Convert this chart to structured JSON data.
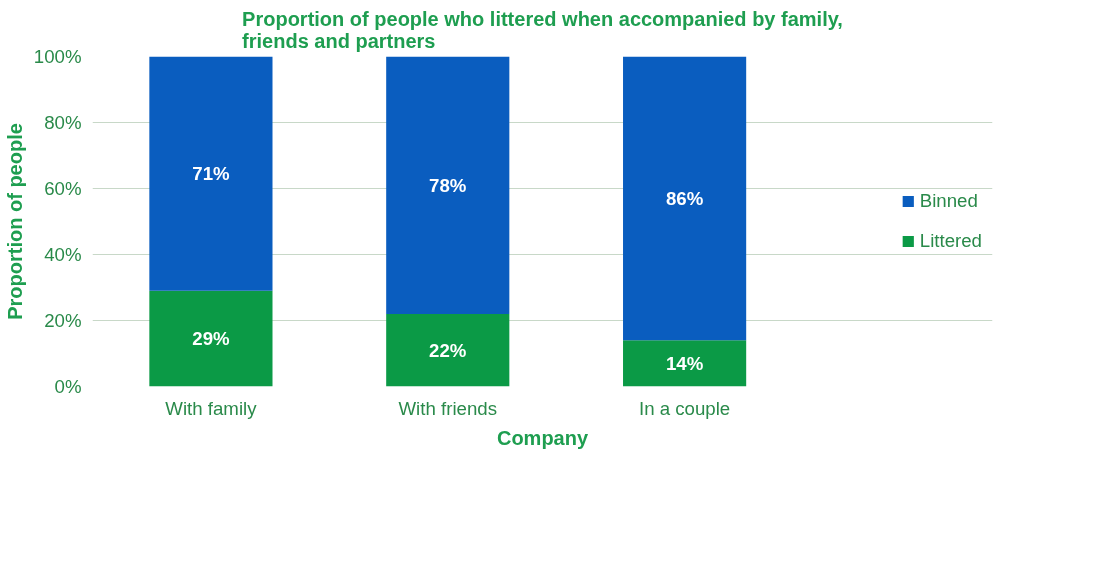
{
  "chart_data": {
    "type": "bar",
    "stacked": true,
    "title": "Proportion of people who littered when accompanied by family,\nfriends and partners",
    "xlabel": "Company",
    "ylabel": "Proportion of people",
    "categories": [
      "With family",
      "With friends",
      "In a couple"
    ],
    "series": [
      {
        "name": "Littered",
        "color": "#0b9a46",
        "values": [
          29,
          22,
          14
        ],
        "value_labels": [
          "29%",
          "22%",
          "14%"
        ]
      },
      {
        "name": "Binned",
        "color": "#0a5dbf",
        "values": [
          71,
          78,
          86
        ],
        "value_labels": [
          "71%",
          "78%",
          "86%"
        ]
      }
    ],
    "ylim": [
      0,
      100
    ],
    "yticks": [
      {
        "value": 0,
        "label": "0%"
      },
      {
        "value": 20,
        "label": "20%"
      },
      {
        "value": 40,
        "label": "40%"
      },
      {
        "value": 60,
        "label": "60%"
      },
      {
        "value": 80,
        "label": "80%"
      },
      {
        "value": 100,
        "label": "100%"
      }
    ],
    "grid": "y",
    "legend": "right"
  }
}
